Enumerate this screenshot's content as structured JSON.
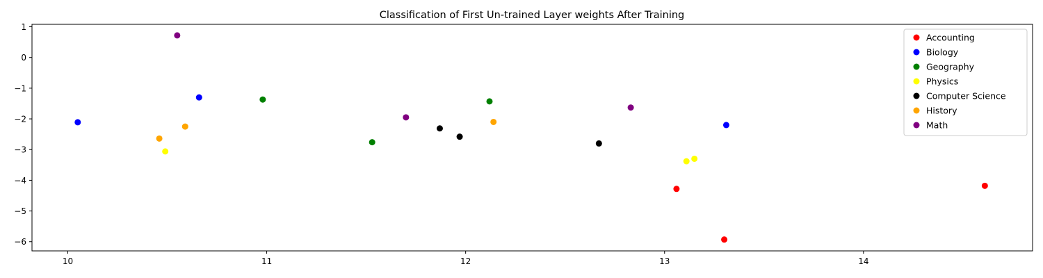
{
  "chart_data": {
    "type": "scatter",
    "title": "Classification of First Un-trained Layer weights After Training",
    "xlabel": "",
    "ylabel": "",
    "xlim": [
      9.82,
      14.85
    ],
    "ylim": [
      -6.3,
      1.08
    ],
    "xticks": [
      10,
      11,
      12,
      13,
      14
    ],
    "yticks": [
      1,
      0,
      -1,
      -2,
      -3,
      -4,
      -5,
      -6
    ],
    "grid": false,
    "legend_position": "top-right",
    "series": [
      {
        "name": "Accounting",
        "color": "#ff0000",
        "points": [
          [
            13.06,
            -4.28
          ],
          [
            13.3,
            -5.93
          ],
          [
            14.61,
            -4.18
          ]
        ]
      },
      {
        "name": "Biology",
        "color": "#0000ff",
        "points": [
          [
            10.05,
            -2.11
          ],
          [
            10.66,
            -1.3
          ],
          [
            13.31,
            -2.2
          ]
        ]
      },
      {
        "name": "Geography",
        "color": "#008000",
        "points": [
          [
            10.98,
            -1.37
          ],
          [
            11.53,
            -2.76
          ],
          [
            12.12,
            -1.43
          ]
        ]
      },
      {
        "name": "Physics",
        "color": "#ffff00",
        "points": [
          [
            10.49,
            -3.06
          ],
          [
            13.11,
            -3.38
          ],
          [
            13.15,
            -3.3
          ]
        ]
      },
      {
        "name": "Computer Science",
        "color": "#000000",
        "points": [
          [
            11.87,
            -2.31
          ],
          [
            11.97,
            -2.58
          ],
          [
            12.67,
            -2.8
          ]
        ]
      },
      {
        "name": "History",
        "color": "#ffa500",
        "points": [
          [
            10.46,
            -2.64
          ],
          [
            10.59,
            -2.25
          ],
          [
            12.14,
            -2.1
          ]
        ]
      },
      {
        "name": "Math",
        "color": "#800080",
        "points": [
          [
            10.55,
            0.72
          ],
          [
            11.7,
            -1.95
          ],
          [
            12.83,
            -1.63
          ]
        ]
      }
    ]
  }
}
